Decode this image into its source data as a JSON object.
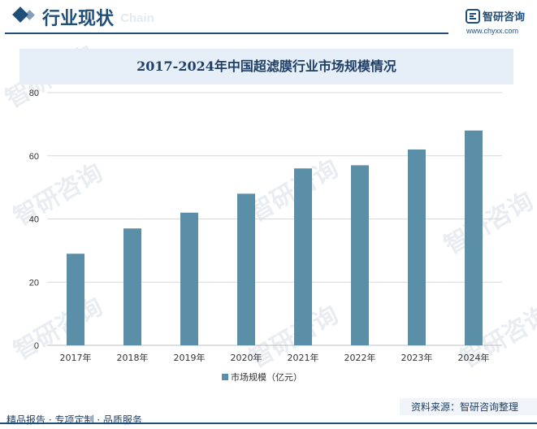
{
  "header": {
    "section_title": "行业现状",
    "section_title_en": "Chain",
    "logo_name": "智研咨询",
    "logo_url": "www.chyxx.com"
  },
  "watermark": "智研咨询",
  "colors": {
    "bar": "#5b8fa8",
    "brand": "#1f4e79",
    "title_band": "#e6eef7",
    "grid": "#d9d9d9"
  },
  "chart_data": {
    "type": "bar",
    "title": "2017-2024年中国超滤膜行业市场规模情况",
    "categories": [
      "2017年",
      "2018年",
      "2019年",
      "2020年",
      "2021年",
      "2022年",
      "2023年",
      "2024年"
    ],
    "series": [
      {
        "name": "市场规模（亿元）",
        "values": [
          29,
          37,
          42,
          48,
          56,
          57,
          62,
          68
        ]
      }
    ],
    "yticks": [
      0,
      20,
      40,
      60,
      80
    ],
    "ylim": [
      0,
      80
    ],
    "grid": true,
    "legend_position": "bottom-center"
  },
  "footer": {
    "left_text": "精品报告 · 专项定制 · 品质服务",
    "source_text": "资料来源：智研咨询整理"
  }
}
